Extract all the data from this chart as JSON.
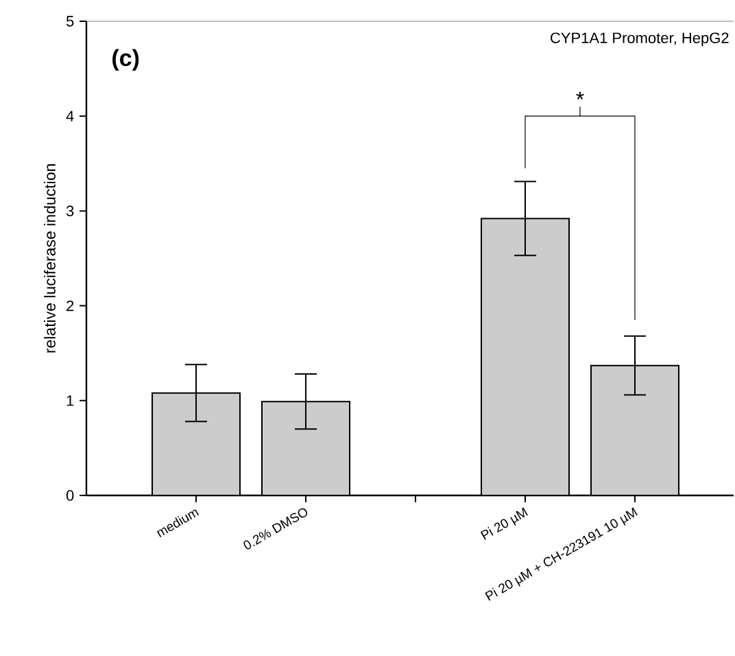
{
  "chart_data": {
    "type": "bar",
    "title": "CYP1A1 Promoter, HepG2",
    "ylabel": "relative luciferase induction",
    "categories": [
      "medium",
      "0.2% DMSO",
      null,
      "Pi 20 µM",
      "Pi 20 µM + CH-223191 10 µM"
    ],
    "values": [
      1.08,
      0.99,
      null,
      2.92,
      1.37
    ],
    "errors": [
      0.3,
      0.29,
      null,
      0.39,
      0.31
    ],
    "color": "#cccccc",
    "ylim": [
      0,
      5
    ],
    "yticks": [
      0,
      1,
      2,
      3,
      4,
      5
    ],
    "annotations": [
      "(c)",
      "*"
    ]
  }
}
